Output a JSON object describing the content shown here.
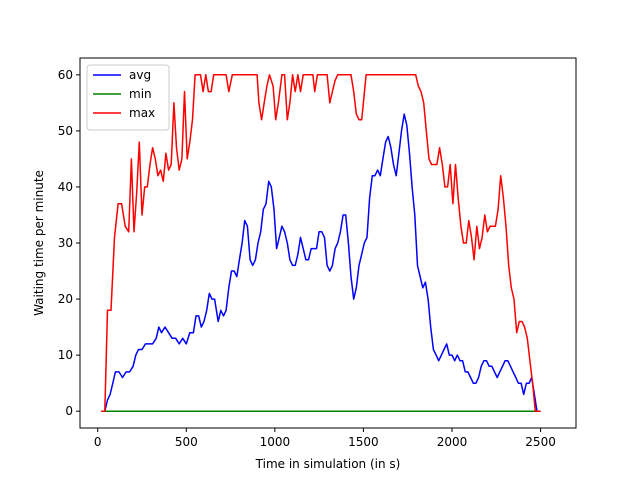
{
  "chart_data": {
    "type": "line",
    "title": "",
    "xlabel": "Time in simulation (in s)",
    "ylabel": "Waiting time per minute",
    "xlim": [
      -100,
      2700
    ],
    "ylim": [
      -3,
      63
    ],
    "xticks": [
      0,
      500,
      1000,
      1500,
      2000,
      2500
    ],
    "yticks": [
      0,
      10,
      20,
      30,
      40,
      50,
      60
    ],
    "grid": false,
    "legend_position": "top-left",
    "series": [
      {
        "name": "avg",
        "color": "#0000ff",
        "points": [
          [
            20,
            0
          ],
          [
            40,
            0
          ],
          [
            55,
            2
          ],
          [
            70,
            3
          ],
          [
            85,
            5
          ],
          [
            100,
            7
          ],
          [
            120,
            7
          ],
          [
            140,
            6
          ],
          [
            160,
            7
          ],
          [
            180,
            7
          ],
          [
            200,
            8
          ],
          [
            215,
            10
          ],
          [
            230,
            11
          ],
          [
            250,
            11
          ],
          [
            270,
            12
          ],
          [
            290,
            12
          ],
          [
            310,
            12
          ],
          [
            330,
            13
          ],
          [
            345,
            15
          ],
          [
            360,
            14
          ],
          [
            380,
            15
          ],
          [
            400,
            14
          ],
          [
            420,
            13
          ],
          [
            440,
            13
          ],
          [
            460,
            12
          ],
          [
            480,
            13
          ],
          [
            500,
            12
          ],
          [
            520,
            14
          ],
          [
            540,
            14
          ],
          [
            555,
            17
          ],
          [
            570,
            17
          ],
          [
            585,
            15
          ],
          [
            600,
            16
          ],
          [
            615,
            18
          ],
          [
            630,
            21
          ],
          [
            645,
            20
          ],
          [
            660,
            20
          ],
          [
            680,
            16
          ],
          [
            695,
            18
          ],
          [
            710,
            17
          ],
          [
            725,
            18
          ],
          [
            740,
            22
          ],
          [
            755,
            25
          ],
          [
            770,
            25
          ],
          [
            785,
            24
          ],
          [
            800,
            27
          ],
          [
            815,
            30
          ],
          [
            830,
            34
          ],
          [
            845,
            33
          ],
          [
            860,
            27
          ],
          [
            875,
            26
          ],
          [
            890,
            27
          ],
          [
            905,
            30
          ],
          [
            920,
            32
          ],
          [
            935,
            36
          ],
          [
            950,
            37
          ],
          [
            965,
            41
          ],
          [
            980,
            40
          ],
          [
            995,
            36
          ],
          [
            1010,
            29
          ],
          [
            1025,
            31
          ],
          [
            1040,
            33
          ],
          [
            1055,
            32
          ],
          [
            1070,
            30
          ],
          [
            1085,
            27
          ],
          [
            1100,
            26
          ],
          [
            1115,
            26
          ],
          [
            1130,
            28
          ],
          [
            1145,
            31
          ],
          [
            1160,
            29
          ],
          [
            1175,
            27
          ],
          [
            1190,
            27
          ],
          [
            1205,
            29
          ],
          [
            1220,
            29
          ],
          [
            1235,
            29
          ],
          [
            1250,
            32
          ],
          [
            1265,
            32
          ],
          [
            1280,
            31
          ],
          [
            1295,
            26
          ],
          [
            1310,
            25
          ],
          [
            1325,
            26
          ],
          [
            1340,
            29
          ],
          [
            1355,
            30
          ],
          [
            1370,
            32
          ],
          [
            1385,
            35
          ],
          [
            1400,
            35
          ],
          [
            1415,
            30
          ],
          [
            1430,
            24
          ],
          [
            1445,
            20
          ],
          [
            1460,
            22
          ],
          [
            1475,
            26
          ],
          [
            1490,
            28
          ],
          [
            1505,
            30
          ],
          [
            1520,
            31
          ],
          [
            1535,
            38
          ],
          [
            1550,
            42
          ],
          [
            1565,
            42
          ],
          [
            1580,
            43
          ],
          [
            1595,
            42
          ],
          [
            1610,
            45
          ],
          [
            1625,
            48
          ],
          [
            1640,
            49
          ],
          [
            1655,
            47
          ],
          [
            1670,
            44
          ],
          [
            1685,
            42
          ],
          [
            1700,
            46
          ],
          [
            1715,
            50
          ],
          [
            1730,
            53
          ],
          [
            1745,
            51
          ],
          [
            1760,
            46
          ],
          [
            1775,
            40
          ],
          [
            1790,
            35
          ],
          [
            1805,
            26
          ],
          [
            1820,
            24
          ],
          [
            1835,
            22
          ],
          [
            1850,
            23
          ],
          [
            1865,
            20
          ],
          [
            1880,
            15
          ],
          [
            1895,
            11
          ],
          [
            1910,
            10
          ],
          [
            1925,
            9
          ],
          [
            1940,
            10
          ],
          [
            1955,
            11
          ],
          [
            1970,
            12
          ],
          [
            1985,
            10
          ],
          [
            2000,
            10
          ],
          [
            2015,
            9
          ],
          [
            2030,
            10
          ],
          [
            2045,
            9
          ],
          [
            2060,
            9
          ],
          [
            2075,
            7
          ],
          [
            2090,
            7
          ],
          [
            2105,
            6
          ],
          [
            2120,
            5
          ],
          [
            2135,
            5
          ],
          [
            2150,
            6
          ],
          [
            2165,
            8
          ],
          [
            2180,
            9
          ],
          [
            2195,
            9
          ],
          [
            2210,
            8
          ],
          [
            2225,
            8
          ],
          [
            2240,
            7
          ],
          [
            2255,
            6
          ],
          [
            2270,
            7
          ],
          [
            2285,
            8
          ],
          [
            2300,
            9
          ],
          [
            2315,
            9
          ],
          [
            2330,
            8
          ],
          [
            2345,
            7
          ],
          [
            2360,
            6
          ],
          [
            2375,
            5
          ],
          [
            2390,
            5
          ],
          [
            2405,
            3
          ],
          [
            2420,
            5
          ],
          [
            2435,
            5
          ],
          [
            2450,
            6
          ],
          [
            2465,
            3
          ],
          [
            2480,
            0
          ],
          [
            2500,
            0
          ]
        ]
      },
      {
        "name": "min",
        "color": "#008000",
        "points": [
          [
            20,
            0
          ],
          [
            2500,
            0
          ]
        ]
      },
      {
        "name": "max",
        "color": "#ff0000",
        "points": [
          [
            20,
            0
          ],
          [
            40,
            0
          ],
          [
            55,
            18
          ],
          [
            75,
            18
          ],
          [
            95,
            31
          ],
          [
            115,
            37
          ],
          [
            135,
            37
          ],
          [
            155,
            33
          ],
          [
            175,
            32
          ],
          [
            190,
            45
          ],
          [
            205,
            32
          ],
          [
            220,
            39
          ],
          [
            235,
            48
          ],
          [
            250,
            35
          ],
          [
            265,
            40
          ],
          [
            280,
            40
          ],
          [
            295,
            44
          ],
          [
            310,
            47
          ],
          [
            325,
            45
          ],
          [
            340,
            42
          ],
          [
            355,
            43
          ],
          [
            370,
            41
          ],
          [
            385,
            46
          ],
          [
            400,
            43
          ],
          [
            415,
            44
          ],
          [
            430,
            55
          ],
          [
            445,
            47
          ],
          [
            460,
            43
          ],
          [
            475,
            45
          ],
          [
            490,
            57
          ],
          [
            505,
            45
          ],
          [
            520,
            48
          ],
          [
            535,
            52
          ],
          [
            550,
            60
          ],
          [
            580,
            60
          ],
          [
            595,
            57
          ],
          [
            610,
            60
          ],
          [
            625,
            57
          ],
          [
            640,
            57
          ],
          [
            655,
            60
          ],
          [
            690,
            60
          ],
          [
            705,
            60
          ],
          [
            725,
            60
          ],
          [
            740,
            57
          ],
          [
            760,
            60
          ],
          [
            780,
            60
          ],
          [
            800,
            60
          ],
          [
            830,
            60
          ],
          [
            860,
            60
          ],
          [
            880,
            60
          ],
          [
            900,
            60
          ],
          [
            910,
            55
          ],
          [
            925,
            52
          ],
          [
            940,
            55
          ],
          [
            955,
            58
          ],
          [
            970,
            60
          ],
          [
            990,
            58
          ],
          [
            1005,
            52
          ],
          [
            1020,
            55
          ],
          [
            1040,
            60
          ],
          [
            1055,
            60
          ],
          [
            1070,
            52
          ],
          [
            1085,
            55
          ],
          [
            1100,
            60
          ],
          [
            1115,
            57
          ],
          [
            1130,
            60
          ],
          [
            1145,
            57
          ],
          [
            1160,
            60
          ],
          [
            1180,
            60
          ],
          [
            1200,
            60
          ],
          [
            1215,
            60
          ],
          [
            1225,
            57
          ],
          [
            1240,
            60
          ],
          [
            1260,
            60
          ],
          [
            1280,
            60
          ],
          [
            1295,
            60
          ],
          [
            1310,
            55
          ],
          [
            1325,
            57
          ],
          [
            1340,
            59
          ],
          [
            1355,
            60
          ],
          [
            1370,
            60
          ],
          [
            1390,
            60
          ],
          [
            1410,
            60
          ],
          [
            1430,
            60
          ],
          [
            1445,
            57
          ],
          [
            1460,
            53
          ],
          [
            1475,
            52
          ],
          [
            1490,
            52
          ],
          [
            1500,
            55
          ],
          [
            1515,
            60
          ],
          [
            1540,
            60
          ],
          [
            1560,
            60
          ],
          [
            1580,
            60
          ],
          [
            1600,
            60
          ],
          [
            1620,
            60
          ],
          [
            1640,
            60
          ],
          [
            1660,
            60
          ],
          [
            1680,
            60
          ],
          [
            1700,
            60
          ],
          [
            1720,
            60
          ],
          [
            1735,
            60
          ],
          [
            1750,
            60
          ],
          [
            1765,
            60
          ],
          [
            1780,
            60
          ],
          [
            1795,
            60
          ],
          [
            1810,
            58
          ],
          [
            1825,
            57
          ],
          [
            1840,
            55
          ],
          [
            1855,
            50
          ],
          [
            1870,
            45
          ],
          [
            1885,
            44
          ],
          [
            1900,
            44
          ],
          [
            1915,
            44
          ],
          [
            1930,
            47
          ],
          [
            1945,
            44
          ],
          [
            1960,
            40
          ],
          [
            1975,
            40
          ],
          [
            1990,
            44
          ],
          [
            2005,
            37
          ],
          [
            2020,
            44
          ],
          [
            2035,
            38
          ],
          [
            2050,
            33
          ],
          [
            2065,
            30
          ],
          [
            2080,
            30
          ],
          [
            2095,
            34
          ],
          [
            2110,
            31
          ],
          [
            2125,
            27
          ],
          [
            2140,
            33
          ],
          [
            2155,
            29
          ],
          [
            2170,
            31
          ],
          [
            2185,
            35
          ],
          [
            2200,
            32
          ],
          [
            2215,
            33
          ],
          [
            2230,
            33
          ],
          [
            2245,
            33
          ],
          [
            2260,
            36
          ],
          [
            2275,
            42
          ],
          [
            2290,
            38
          ],
          [
            2305,
            33
          ],
          [
            2320,
            26
          ],
          [
            2335,
            22
          ],
          [
            2350,
            20
          ],
          [
            2365,
            14
          ],
          [
            2380,
            16
          ],
          [
            2395,
            16
          ],
          [
            2410,
            15
          ],
          [
            2425,
            13
          ],
          [
            2440,
            9
          ],
          [
            2455,
            5
          ],
          [
            2470,
            0
          ],
          [
            2500,
            0
          ]
        ]
      }
    ]
  }
}
